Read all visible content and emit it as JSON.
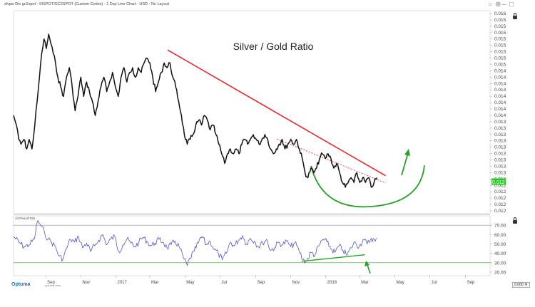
{
  "header": {
    "title": "slvpsi Div gc2spot - SISPOT/GC2SPOT (Custom Codes) - 1 Day Line Chart - USD - No Layout",
    "brand": "Optuma",
    "brand_sub": "optuma.com",
    "scale_readout": "0.000 ▼"
  },
  "chart_data": [
    {
      "type": "line",
      "title": "Silver / Gold Ratio",
      "x_axis_labels": [
        "Sep",
        "Nov",
        "2017",
        "Mar",
        "May",
        "Jul",
        "Sep",
        "Nov",
        "2018",
        "Mar",
        "May",
        "Jul",
        "Sep"
      ],
      "y_tick_labels": [
        "0.016",
        "0.015",
        "0.015",
        "0.015",
        "0.015",
        "0.015",
        "0.015",
        "0.015",
        "0.015",
        "0.014",
        "0.014",
        "0.014",
        "0.014",
        "0.014",
        "0.014",
        "0.014",
        "0.014",
        "0.013",
        "0.013",
        "0.013",
        "0.013",
        "0.013",
        "0.013",
        "0.013",
        "0.013",
        "0.013",
        "0.013",
        "0.012",
        "0.012",
        "0.012",
        "0.012",
        "0.012"
      ],
      "last_value_label": "0.012",
      "last_value_color": "#22cc22",
      "series": [
        {
          "color": "#111111",
          "points": [
            [
              "2016-07-07",
              0.0138
            ],
            [
              "2016-07-12",
              0.0136
            ],
            [
              "2016-07-16",
              0.0133
            ],
            [
              "2016-07-20",
              0.0132
            ],
            [
              "2016-07-25",
              0.0133
            ],
            [
              "2016-07-30",
              0.0131
            ],
            [
              "2016-08-03",
              0.0133
            ],
            [
              "2016-08-08",
              0.0131
            ],
            [
              "2016-08-13",
              0.0136
            ],
            [
              "2016-08-17",
              0.0141
            ],
            [
              "2016-08-21",
              0.0146
            ],
            [
              "2016-08-25",
              0.0151
            ],
            [
              "2016-08-29",
              0.0154
            ],
            [
              "2016-09-02",
              0.0152
            ],
            [
              "2016-09-06",
              0.0155
            ],
            [
              "2016-09-10",
              0.0153
            ],
            [
              "2016-09-14",
              0.0151
            ],
            [
              "2016-09-18",
              0.0149
            ],
            [
              "2016-09-22",
              0.0146
            ],
            [
              "2016-09-27",
              0.0144
            ],
            [
              "2016-10-02",
              0.0142
            ],
            [
              "2016-10-07",
              0.0146
            ],
            [
              "2016-10-12",
              0.0148
            ],
            [
              "2016-10-17",
              0.0144
            ],
            [
              "2016-10-22",
              0.0139
            ],
            [
              "2016-10-27",
              0.0142
            ],
            [
              "2016-11-01",
              0.0146
            ],
            [
              "2016-11-06",
              0.0142
            ],
            [
              "2016-11-11",
              0.0145
            ],
            [
              "2016-11-16",
              0.0143
            ],
            [
              "2016-11-21",
              0.0141
            ],
            [
              "2016-11-26",
              0.0138
            ],
            [
              "2016-12-01",
              0.0141
            ],
            [
              "2016-12-06",
              0.0144
            ],
            [
              "2016-12-11",
              0.0146
            ],
            [
              "2016-12-16",
              0.0143
            ],
            [
              "2016-12-21",
              0.0145
            ],
            [
              "2016-12-26",
              0.0147
            ],
            [
              "2016-12-31",
              0.0144
            ],
            [
              "2017-01-05",
              0.0142
            ],
            [
              "2017-01-10",
              0.0146
            ],
            [
              "2017-01-15",
              0.0148
            ],
            [
              "2017-01-20",
              0.0145
            ],
            [
              "2017-01-25",
              0.0147
            ],
            [
              "2017-01-30",
              0.0148
            ],
            [
              "2017-02-04",
              0.0146
            ],
            [
              "2017-02-09",
              0.0148
            ],
            [
              "2017-02-14",
              0.0147
            ],
            [
              "2017-02-19",
              0.0149
            ],
            [
              "2017-02-24",
              0.015
            ],
            [
              "2017-03-01",
              0.0149
            ],
            [
              "2017-03-06",
              0.0146
            ],
            [
              "2017-03-11",
              0.0143
            ],
            [
              "2017-03-16",
              0.0145
            ],
            [
              "2017-03-21",
              0.0147
            ],
            [
              "2017-03-26",
              0.0149
            ],
            [
              "2017-03-31",
              0.0148
            ],
            [
              "2017-04-05",
              0.0149
            ],
            [
              "2017-04-10",
              0.0146
            ],
            [
              "2017-04-15",
              0.0144
            ],
            [
              "2017-04-20",
              0.0141
            ],
            [
              "2017-04-25",
              0.0138
            ],
            [
              "2017-04-30",
              0.0134
            ],
            [
              "2017-05-05",
              0.0132
            ],
            [
              "2017-05-10",
              0.0133
            ],
            [
              "2017-05-15",
              0.0134
            ],
            [
              "2017-05-20",
              0.0136
            ],
            [
              "2017-05-25",
              0.0137
            ],
            [
              "2017-05-30",
              0.0136
            ],
            [
              "2017-06-04",
              0.0138
            ],
            [
              "2017-06-09",
              0.0137
            ],
            [
              "2017-06-14",
              0.0135
            ],
            [
              "2017-06-19",
              0.0136
            ],
            [
              "2017-06-24",
              0.0134
            ],
            [
              "2017-06-29",
              0.0132
            ],
            [
              "2017-07-04",
              0.013
            ],
            [
              "2017-07-09",
              0.0128
            ],
            [
              "2017-07-14",
              0.013
            ],
            [
              "2017-07-19",
              0.0131
            ],
            [
              "2017-07-24",
              0.013
            ],
            [
              "2017-07-29",
              0.0131
            ],
            [
              "2017-08-03",
              0.013
            ],
            [
              "2017-08-08",
              0.0132
            ],
            [
              "2017-08-13",
              0.0133
            ],
            [
              "2017-08-18",
              0.0132
            ],
            [
              "2017-08-23",
              0.0133
            ],
            [
              "2017-08-28",
              0.0134
            ],
            [
              "2017-09-02",
              0.0133
            ],
            [
              "2017-09-07",
              0.0132
            ],
            [
              "2017-09-12",
              0.0133
            ],
            [
              "2017-09-17",
              0.0134
            ],
            [
              "2017-09-22",
              0.0133
            ],
            [
              "2017-09-27",
              0.0131
            ],
            [
              "2017-10-02",
              0.013
            ],
            [
              "2017-10-07",
              0.0131
            ],
            [
              "2017-10-12",
              0.0132
            ],
            [
              "2017-10-17",
              0.0133
            ],
            [
              "2017-10-22",
              0.0131
            ],
            [
              "2017-10-27",
              0.0132
            ],
            [
              "2017-11-01",
              0.0133
            ],
            [
              "2017-11-06",
              0.0132
            ],
            [
              "2017-11-11",
              0.0133
            ],
            [
              "2017-11-16",
              0.0131
            ],
            [
              "2017-11-21",
              0.0129
            ],
            [
              "2017-11-26",
              0.0126
            ],
            [
              "2017-12-01",
              0.0125
            ],
            [
              "2017-12-06",
              0.0127
            ],
            [
              "2017-12-11",
              0.0126
            ],
            [
              "2017-12-16",
              0.0127
            ],
            [
              "2017-12-21",
              0.0129
            ],
            [
              "2017-12-26",
              0.013
            ],
            [
              "2017-12-31",
              0.0129
            ],
            [
              "2018-01-05",
              0.013
            ],
            [
              "2018-01-10",
              0.0129
            ],
            [
              "2018-01-15",
              0.0127
            ],
            [
              "2018-01-20",
              0.0128
            ],
            [
              "2018-01-25",
              0.0126
            ],
            [
              "2018-01-30",
              0.0124
            ],
            [
              "2018-02-04",
              0.0123
            ],
            [
              "2018-02-09",
              0.0124
            ],
            [
              "2018-02-14",
              0.0125
            ],
            [
              "2018-02-19",
              0.0124
            ],
            [
              "2018-02-24",
              0.0126
            ],
            [
              "2018-03-01",
              0.0124
            ],
            [
              "2018-03-06",
              0.0125
            ],
            [
              "2018-03-11",
              0.0124
            ],
            [
              "2018-03-16",
              0.0125
            ],
            [
              "2018-03-21",
              0.0123
            ],
            [
              "2018-03-26",
              0.0124
            ],
            [
              "2018-03-31",
              0.0125
            ]
          ]
        }
      ],
      "annotations": [
        {
          "kind": "trendline",
          "color": "#e8282e",
          "from": [
            "2017-04-01",
            0.01517
          ],
          "to": [
            "2018-04-15",
            0.01254
          ]
        },
        {
          "kind": "dotted-trendline",
          "color": "#e8282e",
          "from": [
            "2017-10-08",
            0.01331
          ],
          "to": [
            "2018-04-15",
            0.01239
          ]
        },
        {
          "kind": "rounding-bottom-arc",
          "color": "#2aa02a"
        },
        {
          "kind": "arrow-up",
          "color": "#2aa02a"
        }
      ]
    },
    {
      "type": "line",
      "series_label": "14 Period RSI",
      "ylim": [
        20,
        80
      ],
      "y_tick_labels": [
        "70.00",
        "60.00",
        "50.00",
        "40.00",
        "30.00",
        "20.00"
      ],
      "reference_lines": [
        70,
        30
      ],
      "series": [
        {
          "color": "#5555cc",
          "points": [
            [
              "2016-07-07",
              58
            ],
            [
              "2016-07-16",
              52
            ],
            [
              "2016-07-25",
              47
            ],
            [
              "2016-08-03",
              49
            ],
            [
              "2016-08-12",
              55
            ],
            [
              "2016-08-18",
              75
            ],
            [
              "2016-08-24",
              69
            ],
            [
              "2016-08-30",
              62
            ],
            [
              "2016-09-05",
              55
            ],
            [
              "2016-09-11",
              52
            ],
            [
              "2016-09-18",
              47
            ],
            [
              "2016-09-24",
              37
            ],
            [
              "2016-10-01",
              34
            ],
            [
              "2016-10-07",
              45
            ],
            [
              "2016-10-14",
              55
            ],
            [
              "2016-10-21",
              52
            ],
            [
              "2016-10-28",
              58
            ],
            [
              "2016-11-04",
              46
            ],
            [
              "2016-11-11",
              51
            ],
            [
              "2016-11-18",
              42
            ],
            [
              "2016-11-25",
              48
            ],
            [
              "2016-12-02",
              54
            ],
            [
              "2016-12-09",
              60
            ],
            [
              "2016-12-16",
              49
            ],
            [
              "2016-12-23",
              55
            ],
            [
              "2016-12-30",
              58
            ],
            [
              "2017-01-06",
              42
            ],
            [
              "2017-01-13",
              49
            ],
            [
              "2017-01-20",
              55
            ],
            [
              "2017-01-27",
              51
            ],
            [
              "2017-02-03",
              47
            ],
            [
              "2017-02-10",
              52
            ],
            [
              "2017-02-17",
              57
            ],
            [
              "2017-02-24",
              53
            ],
            [
              "2017-03-03",
              48
            ],
            [
              "2017-03-10",
              51
            ],
            [
              "2017-03-17",
              55
            ],
            [
              "2017-03-24",
              52
            ],
            [
              "2017-03-31",
              46
            ],
            [
              "2017-04-07",
              49
            ],
            [
              "2017-04-14",
              53
            ],
            [
              "2017-04-21",
              47
            ],
            [
              "2017-04-28",
              36
            ],
            [
              "2017-05-05",
              27
            ],
            [
              "2017-05-10",
              35
            ],
            [
              "2017-05-17",
              42
            ],
            [
              "2017-05-24",
              51
            ],
            [
              "2017-05-31",
              58
            ],
            [
              "2017-06-07",
              49
            ],
            [
              "2017-06-14",
              53
            ],
            [
              "2017-06-21",
              44
            ],
            [
              "2017-06-28",
              40
            ],
            [
              "2017-07-05",
              33
            ],
            [
              "2017-07-12",
              40
            ],
            [
              "2017-07-19",
              52
            ],
            [
              "2017-07-26",
              48
            ],
            [
              "2017-08-02",
              54
            ],
            [
              "2017-08-09",
              59
            ],
            [
              "2017-08-16",
              50
            ],
            [
              "2017-08-23",
              56
            ],
            [
              "2017-08-30",
              53
            ],
            [
              "2017-09-06",
              47
            ],
            [
              "2017-09-13",
              51
            ],
            [
              "2017-09-20",
              55
            ],
            [
              "2017-09-27",
              43
            ],
            [
              "2017-10-04",
              46
            ],
            [
              "2017-10-11",
              52
            ],
            [
              "2017-10-18",
              49
            ],
            [
              "2017-10-25",
              53
            ],
            [
              "2017-11-01",
              47
            ],
            [
              "2017-11-08",
              51
            ],
            [
              "2017-11-15",
              44
            ],
            [
              "2017-11-22",
              33
            ],
            [
              "2017-11-29",
              32
            ],
            [
              "2017-12-06",
              41
            ],
            [
              "2017-12-13",
              38
            ],
            [
              "2017-12-20",
              48
            ],
            [
              "2017-12-27",
              55
            ],
            [
              "2018-01-03",
              52
            ],
            [
              "2018-01-10",
              45
            ],
            [
              "2018-01-17",
              41
            ],
            [
              "2018-01-24",
              48
            ],
            [
              "2018-01-31",
              43
            ],
            [
              "2018-02-07",
              38
            ],
            [
              "2018-02-14",
              46
            ],
            [
              "2018-02-21",
              52
            ],
            [
              "2018-02-28",
              47
            ],
            [
              "2018-03-07",
              55
            ],
            [
              "2018-03-14",
              50
            ],
            [
              "2018-03-21",
              56
            ],
            [
              "2018-03-28",
              53
            ],
            [
              "2018-03-31",
              56
            ]
          ]
        }
      ],
      "annotations": [
        {
          "kind": "divergence-trendline",
          "color": "#2aa02a",
          "from": [
            "2017-11-20",
            31.5
          ],
          "to": [
            "2018-03-10",
            38.5
          ]
        },
        {
          "kind": "arrow-up",
          "color": "#2aa02a"
        }
      ]
    }
  ]
}
